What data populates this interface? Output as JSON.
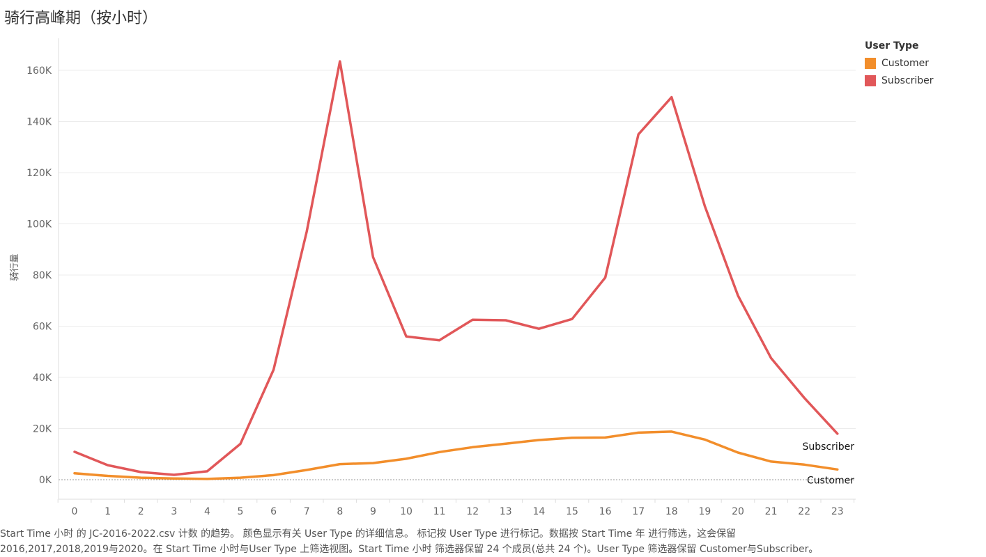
{
  "page": {
    "title": "骑行高峰期（按小时）",
    "caption_line1": "Start Time 小时 的 JC-2016-2022.csv 计数 的趋势。 颜色显示有关 User Type 的详细信息。 标记按 User Type 进行标记。数据按 Start Time 年 进行筛选，这会保留",
    "caption_line2": "2016,2017,2018,2019与2020。在 Start Time 小时与User Type 上筛选视图。Start Time 小时 筛选器保留 24 个成员(总共 24 个)。User Type 筛选器保留 Customer与Subscriber。"
  },
  "legend": {
    "title": "User Type",
    "items": [
      {
        "label": "Customer",
        "color": "#f28e2b"
      },
      {
        "label": "Subscriber",
        "color": "#e15759"
      }
    ]
  },
  "chart_data": {
    "type": "line",
    "title": "骑行高峰期（按小时）",
    "xlabel": "",
    "ylabel": "骑行量",
    "x": [
      0,
      1,
      2,
      3,
      4,
      5,
      6,
      7,
      8,
      9,
      10,
      11,
      12,
      13,
      14,
      15,
      16,
      17,
      18,
      19,
      20,
      21,
      22,
      23
    ],
    "ylim": [
      0,
      170000
    ],
    "yticks": [
      0,
      20000,
      40000,
      60000,
      80000,
      100000,
      120000,
      140000,
      160000
    ],
    "ytick_labels": [
      "0K",
      "20K",
      "40K",
      "60K",
      "80K",
      "100K",
      "120K",
      "140K",
      "160K"
    ],
    "grid": true,
    "legend_position": "top-right",
    "series": [
      {
        "name": "Customer",
        "color": "#f28e2b",
        "values": [
          2500,
          1500,
          800,
          500,
          300,
          800,
          1800,
          3800,
          6100,
          6500,
          8200,
          10800,
          12700,
          14100,
          15500,
          16400,
          16500,
          18400,
          18800,
          15700,
          10600,
          7100,
          5900,
          4000
        ]
      },
      {
        "name": "Subscriber",
        "color": "#e15759",
        "values": [
          10900,
          5700,
          3000,
          1900,
          3300,
          14000,
          43000,
          97000,
          163500,
          87000,
          56000,
          54500,
          62500,
          62300,
          59000,
          62800,
          79000,
          135000,
          149500,
          107000,
          72000,
          47500,
          32000,
          18000
        ]
      }
    ]
  }
}
